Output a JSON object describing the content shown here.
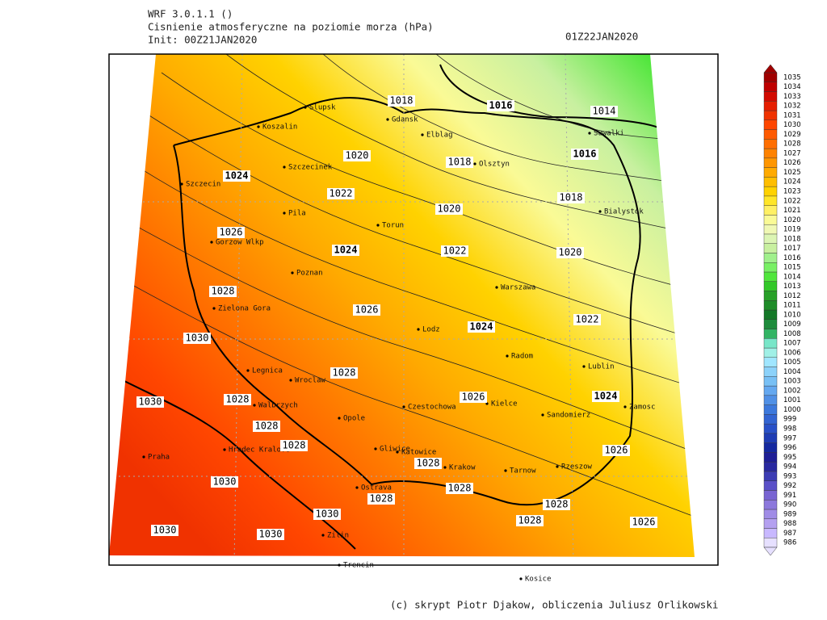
{
  "header": {
    "model": "WRF 3.0.1.1 ()",
    "title": "Cisnienie atmosferyczne na poziomie morza (hPa)",
    "init": "Init: 00Z21JAN2020",
    "valid": "01Z22JAN2020"
  },
  "footer": "(c) skrypt Piotr Djakow, obliczenia Juliusz Orlikowski",
  "colorbar": {
    "levels": [
      986,
      987,
      988,
      989,
      990,
      991,
      992,
      993,
      994,
      995,
      996,
      997,
      998,
      999,
      1000,
      1001,
      1002,
      1003,
      1004,
      1005,
      1006,
      1007,
      1008,
      1009,
      1010,
      1011,
      1012,
      1013,
      1014,
      1015,
      1016,
      1017,
      1018,
      1019,
      1020,
      1021,
      1022,
      1023,
      1024,
      1025,
      1026,
      1027,
      1028,
      1029,
      1030,
      1031,
      1032,
      1033,
      1034,
      1035
    ],
    "colors": [
      "#e6e0ff",
      "#c8b8ff",
      "#b4a0f0",
      "#a08ce6",
      "#8c78dc",
      "#7864d2",
      "#5a50c8",
      "#3c3cb4",
      "#2828a0",
      "#1e1e96",
      "#1428a0",
      "#1e3cb4",
      "#2850c8",
      "#3264d2",
      "#3c78dc",
      "#5090e6",
      "#64a8f0",
      "#78c0f5",
      "#8cd2fa",
      "#a0e6ff",
      "#a0f0e6",
      "#78e6c8",
      "#32b464",
      "#1e8c3c",
      "#147828",
      "#1e8c28",
      "#28a028",
      "#32c828",
      "#50e63c",
      "#78f064",
      "#a0f08c",
      "#c8f0a0",
      "#dcf5b4",
      "#f0f8b4",
      "#fafa96",
      "#fff064",
      "#ffe628",
      "#ffd200",
      "#ffbe00",
      "#ffaa00",
      "#ff9600",
      "#ff8200",
      "#ff6e00",
      "#ff5a00",
      "#ff4600",
      "#f03200",
      "#e61e00",
      "#d20a00",
      "#be0000",
      "#a00000"
    ]
  },
  "isobar_labels": [
    {
      "value": 1018,
      "bold": false
    },
    {
      "value": 1016,
      "bold": true
    },
    {
      "value": 1014,
      "bold": false
    },
    {
      "value": 1016,
      "bold": true
    },
    {
      "value": 1020,
      "bold": false
    },
    {
      "value": 1018,
      "bold": false
    },
    {
      "value": 1024,
      "bold": true
    },
    {
      "value": 1022,
      "bold": false
    },
    {
      "value": 1018,
      "bold": false
    },
    {
      "value": 1020,
      "bold": false
    },
    {
      "value": 1026,
      "bold": false
    },
    {
      "value": 1024,
      "bold": true
    },
    {
      "value": 1022,
      "bold": false
    },
    {
      "value": 1020,
      "bold": false
    },
    {
      "value": 1028,
      "bold": false
    },
    {
      "value": 1026,
      "bold": false
    },
    {
      "value": 1022,
      "bold": false
    },
    {
      "value": 1024,
      "bold": true
    },
    {
      "value": 1030,
      "bold": false
    },
    {
      "value": 1028,
      "bold": false
    },
    {
      "value": 1026,
      "bold": false
    },
    {
      "value": 1024,
      "bold": true
    },
    {
      "value": 1030,
      "bold": false
    },
    {
      "value": 1028,
      "bold": false
    },
    {
      "value": 1028,
      "bold": false
    },
    {
      "value": 1028,
      "bold": false
    },
    {
      "value": 1026,
      "bold": false
    },
    {
      "value": 1028,
      "bold": false
    },
    {
      "value": 1030,
      "bold": false
    },
    {
      "value": 1028,
      "bold": false
    },
    {
      "value": 1028,
      "bold": false
    },
    {
      "value": 1028,
      "bold": false
    },
    {
      "value": 1030,
      "bold": false
    },
    {
      "value": 1028,
      "bold": false
    },
    {
      "value": 1026,
      "bold": false
    },
    {
      "value": 1030,
      "bold": false
    },
    {
      "value": 1030,
      "bold": false
    }
  ],
  "cities": [
    "Slupsk",
    "Koszalin",
    "Gdansk",
    "Elblag",
    "Olsztyn",
    "Suwalki",
    "Szczecinek",
    "Szczecin",
    "Pila",
    "Torun",
    "Bialystok",
    "Gorzow Wlkp",
    "Poznan",
    "Warszawa",
    "Zielona Gora",
    "Lodz",
    "Radom",
    "Lublin",
    "Legnica",
    "Wroclaw",
    "Walbrzych",
    "Czestochowa",
    "Kielce",
    "Zamosc",
    "Sandomierz",
    "Opole",
    "Praha",
    "Hradec Kralove",
    "Gliwice",
    "Katowice",
    "Krakow",
    "Rzeszow",
    "Tarnow",
    "Ostrava",
    "Zilin",
    "Trencin",
    "Kosice"
  ]
}
